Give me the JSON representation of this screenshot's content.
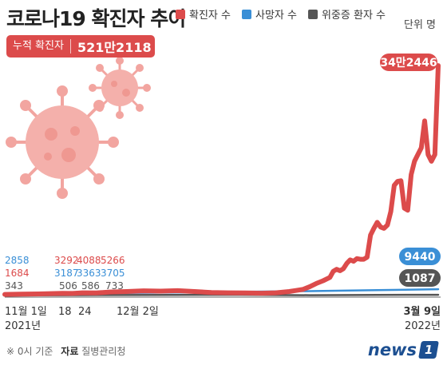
{
  "title": "코로나19 확진자 추이",
  "unit": "단위 명",
  "cumulative": {
    "label": "누적 확진자",
    "value": "521만2118"
  },
  "legend": [
    {
      "name": "확진자 수",
      "color": "#dc4b4b"
    },
    {
      "name": "사망자 수",
      "color": "#3a8fd6"
    },
    {
      "name": "위중증 환자 수",
      "color": "#555555"
    }
  ],
  "footer": {
    "note": "※ 0시 기준",
    "source_label": "자료",
    "source": "질병관리청"
  },
  "logo": {
    "text": "news",
    "mark": "1"
  },
  "chart_data": {
    "type": "line",
    "x_labels": [
      {
        "text": "11월 1일",
        "sub": "2021년",
        "day": 0
      },
      {
        "text": "18",
        "sub": "",
        "day": 17
      },
      {
        "text": "24",
        "sub": "",
        "day": 23
      },
      {
        "text": "12월 2일",
        "sub": "",
        "day": 31
      },
      {
        "text": "3월 9일",
        "sub": "2022년",
        "day": 128
      }
    ],
    "series": [
      {
        "name": "확진자 수",
        "color": "#dc4b4b",
        "points": [
          [
            0,
            1684
          ],
          [
            5,
            2100
          ],
          [
            10,
            2400
          ],
          [
            17,
            3292
          ],
          [
            20,
            3100
          ],
          [
            23,
            4088
          ],
          [
            27,
            3800
          ],
          [
            31,
            5266
          ],
          [
            36,
            6000
          ],
          [
            41,
            7000
          ],
          [
            46,
            6500
          ],
          [
            51,
            7200
          ],
          [
            56,
            6000
          ],
          [
            61,
            4500
          ],
          [
            66,
            4000
          ],
          [
            71,
            3800
          ],
          [
            76,
            3500
          ],
          [
            80,
            4000
          ],
          [
            84,
            6000
          ],
          [
            86,
            7500
          ],
          [
            88,
            9000
          ],
          [
            90,
            13000
          ],
          [
            92,
            18000
          ],
          [
            94,
            22000
          ],
          [
            96,
            27000
          ],
          [
            97,
            36000
          ],
          [
            98,
            39000
          ],
          [
            99,
            37000
          ],
          [
            100,
            40000
          ],
          [
            101,
            48000
          ],
          [
            102,
            53000
          ],
          [
            103,
            51000
          ],
          [
            104,
            55000
          ],
          [
            105,
            54000
          ],
          [
            106,
            54000
          ],
          [
            107,
            57000
          ],
          [
            108,
            90000
          ],
          [
            109,
            100000
          ],
          [
            110,
            109000
          ],
          [
            111,
            102000
          ],
          [
            112,
            100000
          ],
          [
            113,
            105000
          ],
          [
            114,
            125000
          ],
          [
            115,
            164000
          ],
          [
            116,
            170000
          ],
          [
            117,
            171000
          ],
          [
            118,
            130000
          ],
          [
            119,
            127000
          ],
          [
            120,
            180000
          ],
          [
            121,
            200000
          ],
          [
            122,
            210000
          ],
          [
            123,
            220000
          ],
          [
            124,
            260000
          ],
          [
            125,
            210000
          ],
          [
            126,
            200000
          ],
          [
            127,
            210000
          ],
          [
            128,
            342446
          ]
        ],
        "labels": [
          {
            "text": "1684",
            "day": 0
          },
          {
            "text": "3292",
            "day": 17
          },
          {
            "text": "4088",
            "day": 23
          },
          {
            "text": "5266",
            "day": 31
          },
          {
            "text": "34만2446",
            "day": 128
          }
        ]
      },
      {
        "name": "사망자 수",
        "color": "#3a8fd6",
        "points": [
          [
            0,
            2858
          ],
          [
            17,
            3187
          ],
          [
            23,
            3363
          ],
          [
            31,
            3705
          ],
          [
            60,
            5000
          ],
          [
            90,
            6500
          ],
          [
            110,
            8000
          ],
          [
            128,
            9440
          ]
        ],
        "labels": [
          {
            "text": "2858",
            "day": 0
          },
          {
            "text": "3187",
            "day": 17
          },
          {
            "text": "3363",
            "day": 23
          },
          {
            "text": "3705",
            "day": 31
          },
          {
            "text": "9440",
            "day": 128
          }
        ]
      },
      {
        "name": "위중증 환자 수",
        "color": "#555555",
        "points": [
          [
            0,
            343
          ],
          [
            17,
            506
          ],
          [
            23,
            586
          ],
          [
            31,
            733
          ],
          [
            50,
            1000
          ],
          [
            70,
            1050
          ],
          [
            90,
            500
          ],
          [
            110,
            900
          ],
          [
            128,
            1087
          ]
        ],
        "labels": [
          {
            "text": "343",
            "day": 0
          },
          {
            "text": "506",
            "day": 17
          },
          {
            "text": "586",
            "day": 23
          },
          {
            "text": "733",
            "day": 31
          },
          {
            "text": "1087",
            "day": 128
          }
        ]
      }
    ],
    "ylim": [
      0,
      345000
    ]
  }
}
